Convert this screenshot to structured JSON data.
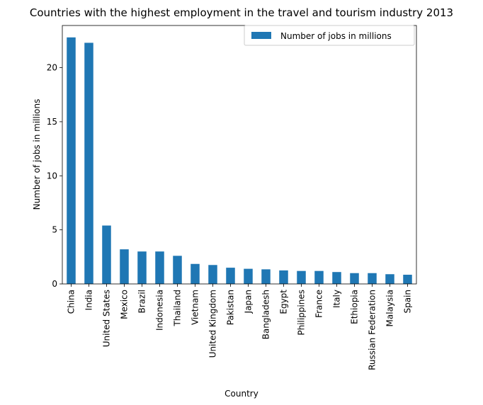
{
  "chart_data": {
    "type": "bar",
    "title": "Countries with the highest employment in the travel and tourism industry 2013",
    "xlabel": "Country",
    "ylabel": "Number of jobs in millions",
    "categories": [
      "China",
      "India",
      "United States",
      "Mexico",
      "Brazil",
      "Indonesia",
      "Thailand",
      "Vietnam",
      "United Kingdom",
      "Pakistan",
      "Japan",
      "Bangladesh",
      "Egypt",
      "Philippines",
      "France",
      "Italy",
      "Ethiopia",
      "Russian Federation",
      "Malaysia",
      "Spain"
    ],
    "series": [
      {
        "name": "Number of jobs in millions",
        "color": "#1f77b4",
        "values": [
          22.8,
          22.3,
          5.4,
          3.2,
          3.0,
          3.0,
          2.6,
          1.85,
          1.75,
          1.5,
          1.4,
          1.35,
          1.25,
          1.2,
          1.2,
          1.1,
          1.0,
          1.0,
          0.9,
          0.85
        ]
      }
    ],
    "ylim": [
      0,
      23.9
    ],
    "yticks": [
      0,
      5,
      10,
      15,
      20
    ],
    "grid": false,
    "legend": "top-right"
  }
}
